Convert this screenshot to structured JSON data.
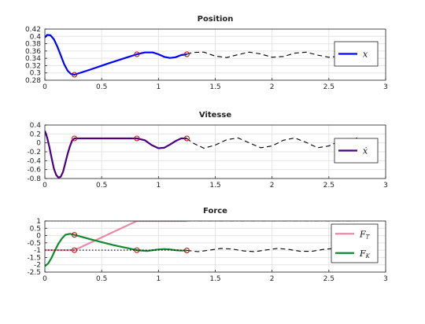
{
  "chart_data": [
    {
      "type": "line",
      "title": "Position",
      "xlim": [
        0,
        3
      ],
      "ylim": [
        0.28,
        0.42
      ],
      "xticks": [
        "0",
        "0.5",
        "1",
        "1.5",
        "2",
        "2.5",
        "3"
      ],
      "yticks": [
        "0.28",
        "0.3",
        "0.32",
        "0.34",
        "0.36",
        "0.38",
        "0.4",
        "0.42"
      ],
      "grid": true,
      "legend_position": "right",
      "series": [
        {
          "name": "x",
          "color": "#0000ff",
          "style": "solid",
          "x": [
            0,
            0.02,
            0.05,
            0.08,
            0.11,
            0.14,
            0.17,
            0.2,
            0.23,
            0.26,
            0.4,
            0.55,
            0.7,
            0.81,
            0.88,
            0.95,
            1.0,
            1.05,
            1.1,
            1.15,
            1.2,
            1.25
          ],
          "y": [
            0.397,
            0.404,
            0.403,
            0.392,
            0.372,
            0.348,
            0.324,
            0.306,
            0.297,
            0.295,
            0.309,
            0.325,
            0.34,
            0.351,
            0.356,
            0.356,
            0.351,
            0.344,
            0.341,
            0.343,
            0.349,
            0.351
          ]
        },
        {
          "name": "",
          "color": "#000000",
          "style": "dashed",
          "x": [
            1.25,
            1.3,
            1.4,
            1.5,
            1.6,
            1.7,
            1.8,
            1.9,
            2.0,
            2.1,
            2.2,
            2.3,
            2.4,
            2.5,
            2.6,
            2.75
          ],
          "y": [
            0.351,
            0.356,
            0.357,
            0.346,
            0.342,
            0.35,
            0.357,
            0.352,
            0.343,
            0.345,
            0.354,
            0.357,
            0.349,
            0.343,
            0.346,
            0.353
          ]
        }
      ],
      "markers": {
        "color": "#cc0000",
        "x": [
          0.26,
          0.81,
          1.25
        ],
        "y": [
          0.295,
          0.351,
          0.351
        ]
      },
      "legend": [
        {
          "label": "x",
          "color": "#0000ff",
          "style": "solid"
        }
      ]
    },
    {
      "type": "line",
      "title": "Vitesse",
      "xlim": [
        0,
        3
      ],
      "ylim": [
        -0.8,
        0.4
      ],
      "xticks": [
        "0",
        "0.5",
        "1",
        "1.5",
        "2",
        "2.5",
        "3"
      ],
      "yticks": [
        "-0.8",
        "-0.6",
        "-0.4",
        "-0.2",
        "0",
        "0.2",
        "0.4"
      ],
      "grid": true,
      "legend_position": "right",
      "series": [
        {
          "name": "ẋ",
          "color": "#4b0082",
          "style": "solid",
          "x": [
            0,
            0.02,
            0.04,
            0.06,
            0.08,
            0.1,
            0.12,
            0.14,
            0.16,
            0.18,
            0.2,
            0.22,
            0.24,
            0.26,
            0.4,
            0.6,
            0.81,
            0.88,
            0.94,
            1.0,
            1.05,
            1.1,
            1.15,
            1.2,
            1.25
          ],
          "y": [
            0.27,
            0.12,
            -0.1,
            -0.35,
            -0.58,
            -0.72,
            -0.78,
            -0.76,
            -0.65,
            -0.45,
            -0.25,
            -0.08,
            0.05,
            0.1,
            0.1,
            0.1,
            0.1,
            0.06,
            -0.05,
            -0.12,
            -0.11,
            -0.04,
            0.04,
            0.1,
            0.1
          ]
        },
        {
          "name": "",
          "color": "#000000",
          "style": "dashed",
          "x": [
            1.25,
            1.3,
            1.4,
            1.5,
            1.6,
            1.7,
            1.8,
            1.9,
            2.0,
            2.1,
            2.2,
            2.3,
            2.4,
            2.5,
            2.6,
            2.75
          ],
          "y": [
            0.1,
            0.0,
            -0.12,
            -0.05,
            0.07,
            0.11,
            0.0,
            -0.11,
            -0.07,
            0.06,
            0.11,
            0.01,
            -0.11,
            -0.07,
            0.05,
            0.11
          ]
        }
      ],
      "markers": {
        "color": "#cc0000",
        "x": [
          0.26,
          0.81,
          1.25
        ],
        "y": [
          0.1,
          0.1,
          0.1
        ]
      },
      "legend": [
        {
          "label": "ẋ",
          "color": "#4b0082",
          "style": "solid"
        }
      ]
    },
    {
      "type": "line",
      "title": "Force",
      "xlim": [
        0,
        3
      ],
      "ylim": [
        -2.5,
        1
      ],
      "xticks": [
        "0",
        "0.5",
        "1",
        "1.5",
        "2",
        "2.5",
        "3"
      ],
      "yticks": [
        "-2.5",
        "-2",
        "-1.5",
        "-1",
        "-0.5",
        "0",
        "0.5",
        "1"
      ],
      "grid": true,
      "legend_position": "right",
      "series": [
        {
          "name": "F_T",
          "color": "#e889a8",
          "style": "solid",
          "x": [
            0,
            0.26,
            0.81,
            1.25
          ],
          "y": [
            -1,
            -1,
            1,
            1
          ]
        },
        {
          "name": "F_K",
          "color": "#118a2e",
          "style": "solid",
          "x": [
            0,
            0.03,
            0.06,
            0.09,
            0.12,
            0.15,
            0.18,
            0.22,
            0.26,
            0.4,
            0.6,
            0.81,
            0.9,
            1.0,
            1.05,
            1.1,
            1.15,
            1.2,
            1.25
          ],
          "y": [
            -2.1,
            -1.9,
            -1.5,
            -1.0,
            -0.55,
            -0.2,
            0.05,
            0.12,
            0.05,
            -0.25,
            -0.65,
            -1.0,
            -1.05,
            -0.95,
            -0.92,
            -0.95,
            -1.0,
            -1.03,
            -1.02
          ]
        },
        {
          "name": "",
          "color": "#000000",
          "style": "dotted",
          "x": [
            0,
            1.25
          ],
          "y": [
            -1,
            -1
          ]
        },
        {
          "name": "",
          "color": "#000000",
          "style": "dotted",
          "x": [
            0,
            1.25
          ],
          "y": [
            1,
            1
          ]
        },
        {
          "name": "",
          "color": "#000000",
          "style": "dashdot",
          "x": [
            1.25,
            2.75
          ],
          "y": [
            1,
            1
          ]
        },
        {
          "name": "",
          "color": "#000000",
          "style": "dashed",
          "x": [
            1.25,
            1.35,
            1.45,
            1.55,
            1.65,
            1.75,
            1.85,
            1.95,
            2.05,
            2.15,
            2.25,
            2.35,
            2.45,
            2.55,
            2.65,
            2.75
          ],
          "y": [
            -1.02,
            -1.1,
            -1.0,
            -0.88,
            -0.92,
            -1.05,
            -1.1,
            -0.98,
            -0.88,
            -0.95,
            -1.08,
            -1.08,
            -0.95,
            -0.88,
            -0.95,
            -1.05
          ]
        }
      ],
      "markers": {
        "color": "#cc0000",
        "x": [
          0.26,
          0.26,
          0.81,
          1.25
        ],
        "y": [
          0.05,
          -1,
          -1.0,
          -1.02
        ]
      },
      "legend": [
        {
          "label": "F",
          "sub": "T",
          "color": "#e889a8",
          "style": "solid"
        },
        {
          "label": "F",
          "sub": "K",
          "color": "#118a2e",
          "style": "solid"
        }
      ]
    }
  ]
}
